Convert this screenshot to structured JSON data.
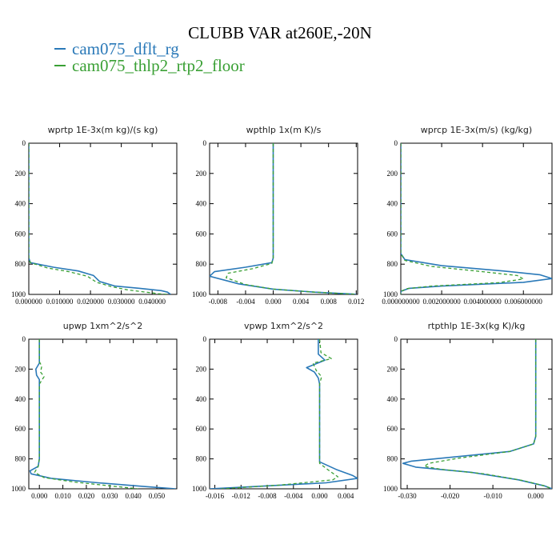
{
  "title": "CLUBB VAR at260E,-20N",
  "legend": [
    {
      "label": "cam075_dflt_rg",
      "color": "#2a79b8",
      "dash": "solid"
    },
    {
      "label": "cam075_thlp2_rtp2_floor",
      "color": "#3aa035",
      "dash": "dashed"
    }
  ],
  "chart_data": [
    {
      "type": "line",
      "title": "wprtp  1E-3x(m kg)/(s kg)",
      "xlim": [
        0,
        0.048
      ],
      "ylim": [
        1000,
        0
      ],
      "xticks": [
        0,
        0.01,
        0.02,
        0.03,
        0.04
      ],
      "xtick_labels": [
        "0.000000",
        "0.010000",
        "0.020000",
        "0.030000",
        "0.040000"
      ],
      "yticks": [
        0,
        200,
        400,
        600,
        800,
        1000
      ],
      "ytick_labels": [
        "0",
        "200",
        "400",
        "600",
        "800",
        "1000"
      ],
      "series": [
        {
          "name": "cam075_dflt_rg",
          "x": [
            0,
            0,
            0,
            0.0005,
            0.008,
            0.016,
            0.021,
            0.023,
            0.028,
            0.036,
            0.043,
            0.045,
            0.046
          ],
          "y": [
            0,
            400,
            760,
            790,
            820,
            845,
            875,
            915,
            945,
            960,
            975,
            985,
            1000
          ]
        },
        {
          "name": "cam075_thlp2_rtp2_floor",
          "x": [
            0,
            0,
            0,
            0.0005,
            0.006,
            0.013,
            0.019,
            0.022,
            0.027,
            0.032,
            0.038,
            0.042,
            0.045
          ],
          "y": [
            0,
            400,
            760,
            790,
            825,
            850,
            880,
            920,
            950,
            970,
            985,
            995,
            1000
          ]
        }
      ]
    },
    {
      "type": "line",
      "title": "wpthlp  1x(m K)/s",
      "xlim": [
        -0.0092,
        0.0122
      ],
      "ylim": [
        1000,
        0
      ],
      "xticks": [
        -0.008,
        -0.004,
        0,
        0.004,
        0.008,
        0.012
      ],
      "xtick_labels": [
        "-0.008",
        "-0.004",
        "0.000",
        "0.004",
        "0.008",
        "0.012"
      ],
      "yticks": [
        0,
        200,
        400,
        600,
        800,
        1000
      ],
      "ytick_labels": [
        "0",
        "200",
        "400",
        "600",
        "800",
        "1000"
      ],
      "series": [
        {
          "name": "cam075_dflt_rg",
          "x": [
            0,
            0,
            0,
            0,
            -0.0002,
            -0.004,
            -0.0085,
            -0.0092,
            -0.005,
            0,
            0.006,
            0.0115,
            0.012
          ],
          "y": [
            0,
            400,
            700,
            760,
            790,
            820,
            850,
            880,
            930,
            965,
            985,
            998,
            1000
          ]
        },
        {
          "name": "cam075_thlp2_rtp2_floor",
          "x": [
            0,
            0,
            0,
            0,
            -0.0002,
            -0.003,
            -0.0065,
            -0.0068,
            -0.004,
            0,
            0.006,
            0.0115,
            0.012
          ],
          "y": [
            0,
            400,
            700,
            760,
            795,
            830,
            860,
            890,
            935,
            965,
            985,
            998,
            1000
          ]
        }
      ]
    },
    {
      "type": "line",
      "title": "wprcp  1E-3x(m/s) (kg/kg)",
      "xlim": [
        0,
        0.0074
      ],
      "ylim": [
        1000,
        0
      ],
      "xticks": [
        0,
        0.002,
        0.004,
        0.006
      ],
      "xtick_labels": [
        "0.000000000",
        "0.002000000",
        "0.004000000",
        "0.006000000"
      ],
      "yticks": [
        0,
        200,
        400,
        600,
        800,
        1000
      ],
      "ytick_labels": [
        "0",
        "200",
        "400",
        "600",
        "800",
        "1000"
      ],
      "series": [
        {
          "name": "cam075_dflt_rg",
          "x": [
            0,
            0,
            0,
            0.0002,
            0.002,
            0.005,
            0.0068,
            0.0074,
            0.006,
            0.002,
            0.0004,
            0,
            0
          ],
          "y": [
            0,
            400,
            730,
            770,
            810,
            845,
            870,
            895,
            920,
            945,
            960,
            980,
            1000
          ]
        },
        {
          "name": "cam075_thlp2_rtp2_floor",
          "x": [
            0,
            0,
            0,
            0.0002,
            0.0015,
            0.004,
            0.0057,
            0.006,
            0.0048,
            0.0015,
            0.0003,
            0,
            0
          ],
          "y": [
            0,
            400,
            730,
            775,
            815,
            850,
            875,
            898,
            922,
            945,
            962,
            980,
            1000
          ]
        }
      ]
    },
    {
      "type": "line",
      "title": "upwp  1xm^2/s^2",
      "xlim": [
        -0.0045,
        0.0585
      ],
      "ylim": [
        1000,
        0
      ],
      "xticks": [
        0,
        0.01,
        0.02,
        0.03,
        0.04,
        0.05
      ],
      "xtick_labels": [
        "0.000",
        "0.010",
        "0.020",
        "0.030",
        "0.040",
        "0.050"
      ],
      "yticks": [
        0,
        200,
        400,
        600,
        800,
        1000
      ],
      "ytick_labels": [
        "0",
        "200",
        "400",
        "600",
        "800",
        "1000"
      ],
      "series": [
        {
          "name": "cam075_dflt_rg",
          "x": [
            0,
            0,
            -0.0015,
            -0.0012,
            0,
            0,
            0,
            -0.0005,
            -0.004,
            -0.0035,
            0.005,
            0.025,
            0.045,
            0.058
          ],
          "y": [
            0,
            160,
            200,
            240,
            270,
            500,
            800,
            850,
            880,
            900,
            930,
            960,
            985,
            1000
          ]
        },
        {
          "name": "cam075_thlp2_rtp2_floor",
          "x": [
            0,
            0,
            0.001,
            0.0005,
            0.002,
            0,
            0,
            -0.0005,
            -0.002,
            0.002,
            0.015,
            0.03,
            0.042
          ],
          "y": [
            0,
            150,
            180,
            220,
            250,
            300,
            800,
            850,
            890,
            925,
            955,
            980,
            1000
          ]
        }
      ]
    },
    {
      "type": "line",
      "title": "vpwp  1xm^2/s^2",
      "xlim": [
        -0.0168,
        0.0058
      ],
      "ylim": [
        1000,
        0
      ],
      "xticks": [
        -0.016,
        -0.012,
        -0.008,
        -0.004,
        0,
        0.004
      ],
      "xtick_labels": [
        "-0.016",
        "-0.012",
        "-0.008",
        "-0.004",
        "0.000",
        "0.004"
      ],
      "yticks": [
        0,
        200,
        400,
        600,
        800,
        1000
      ],
      "ytick_labels": [
        "0",
        "200",
        "400",
        "600",
        "800",
        "1000"
      ],
      "series": [
        {
          "name": "cam075_dflt_rg",
          "x": [
            -0.0002,
            -0.0002,
            0.0008,
            -0.002,
            -0.0008,
            -0.0002,
            0,
            0,
            0.0025,
            0.005,
            0.0058,
            0.001,
            -0.012,
            -0.0168
          ],
          "y": [
            0,
            100,
            140,
            190,
            220,
            260,
            300,
            820,
            870,
            910,
            930,
            960,
            990,
            1000
          ]
        },
        {
          "name": "cam075_thlp2_rtp2_floor",
          "x": [
            0,
            0.0002,
            0.0018,
            -0.001,
            -0.0005,
            0.0003,
            0,
            0,
            0.0015,
            0.0028,
            0.002,
            -0.006,
            -0.015
          ],
          "y": [
            0,
            90,
            130,
            160,
            210,
            250,
            300,
            830,
            880,
            920,
            940,
            975,
            1000
          ]
        }
      ]
    },
    {
      "type": "line",
      "title": "rtpthlp  1E-3x(kg K)/kg",
      "xlim": [
        -0.0315,
        0.0038
      ],
      "ylim": [
        1000,
        0
      ],
      "xticks": [
        -0.03,
        -0.02,
        -0.01,
        0
      ],
      "xtick_labels": [
        "-0.030",
        "-0.020",
        "-0.010",
        "0.000"
      ],
      "yticks": [
        0,
        200,
        400,
        600,
        800,
        1000
      ],
      "ytick_labels": [
        "0",
        "200",
        "400",
        "600",
        "800",
        "1000"
      ],
      "series": [
        {
          "name": "cam075_dflt_rg",
          "x": [
            0,
            0,
            0,
            -0.0005,
            -0.006,
            -0.02,
            -0.029,
            -0.031,
            -0.028,
            -0.015,
            -0.004,
            0.002,
            0.0038
          ],
          "y": [
            0,
            400,
            650,
            700,
            750,
            790,
            815,
            830,
            855,
            890,
            940,
            980,
            1000
          ]
        },
        {
          "name": "cam075_thlp2_rtp2_floor",
          "x": [
            0,
            0,
            0,
            -0.0005,
            -0.006,
            -0.018,
            -0.025,
            -0.026,
            -0.022,
            -0.012,
            -0.003,
            0.002,
            0.0038
          ],
          "y": [
            0,
            400,
            650,
            700,
            750,
            795,
            830,
            850,
            870,
            900,
            945,
            980,
            1000
          ]
        }
      ]
    }
  ]
}
